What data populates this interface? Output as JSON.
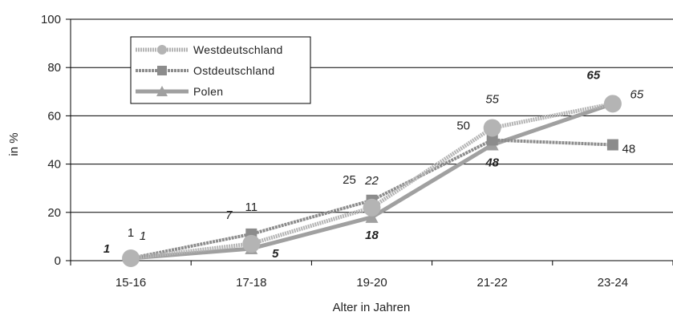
{
  "chart_data": {
    "type": "line",
    "categories": [
      "15-16",
      "17-18",
      "19-20",
      "21-22",
      "23-24"
    ],
    "xlabel": "Alter in Jahren",
    "ylabel": "in %",
    "ylim": [
      0,
      100
    ],
    "yticks": [
      0,
      20,
      40,
      60,
      80,
      100
    ],
    "grid": true,
    "legend": "top-left",
    "series": [
      {
        "name": "Westdeutschland",
        "values": [
          1,
          7,
          22,
          55,
          65
        ],
        "labels": [
          "1",
          "7",
          "22",
          "55",
          "65"
        ],
        "color": "#b4b4b4",
        "marker": "circle",
        "label_style": "italic"
      },
      {
        "name": "Ostdeutschland",
        "values": [
          1,
          11,
          25,
          50,
          48
        ],
        "labels": [
          "1",
          "11",
          "25",
          "50",
          "48"
        ],
        "color": "#8c8c8c",
        "marker": "square",
        "label_style": "normal"
      },
      {
        "name": "Polen",
        "values": [
          1,
          5,
          18,
          48,
          65
        ],
        "labels": [
          "1",
          "5",
          "18",
          "48",
          "65"
        ],
        "color": "#a0a0a0",
        "marker": "triangle",
        "label_style": "bold-italic"
      }
    ]
  }
}
